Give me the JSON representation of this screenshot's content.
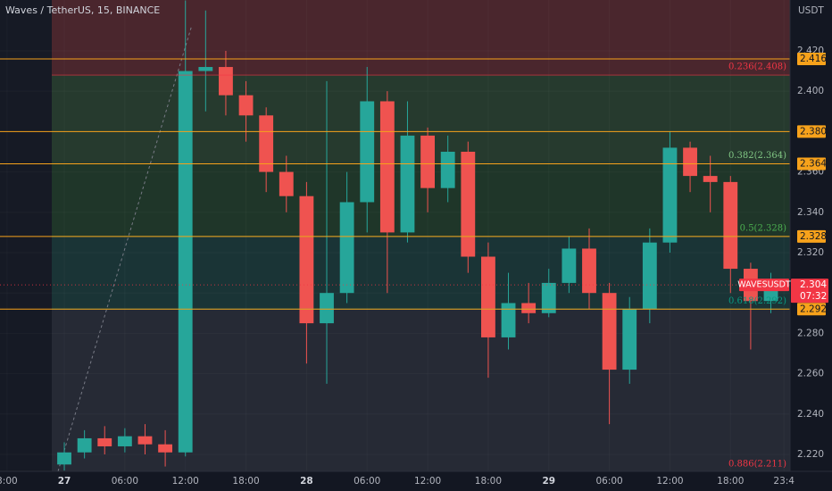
{
  "chart_data": {
    "type": "candlestick",
    "title": "Waves / TetherUS, 15, BINANCE",
    "y_unit": "USDT",
    "up_color": "#26a69a",
    "down_color": "#ef5350",
    "x": [
      0,
      2,
      4,
      6,
      8,
      10,
      12,
      14,
      16,
      18,
      20,
      22,
      24,
      26,
      28,
      30,
      32,
      34,
      36,
      38,
      40,
      42,
      44,
      46,
      48,
      50,
      52,
      54,
      56,
      58,
      60,
      62,
      64,
      66,
      68,
      70
    ],
    "open": [
      2.215,
      2.221,
      2.228,
      2.224,
      2.229,
      2.225,
      2.221,
      2.41,
      2.412,
      2.398,
      2.388,
      2.36,
      2.348,
      2.285,
      2.3,
      2.345,
      2.395,
      2.33,
      2.378,
      2.352,
      2.37,
      2.318,
      2.278,
      2.295,
      2.29,
      2.305,
      2.322,
      2.3,
      2.262,
      2.292,
      2.325,
      2.372,
      2.358,
      2.355,
      2.312,
      2.296
    ],
    "high": [
      2.226,
      2.232,
      2.234,
      2.233,
      2.235,
      2.232,
      2.445,
      2.44,
      2.42,
      2.405,
      2.392,
      2.368,
      2.355,
      2.405,
      2.36,
      2.412,
      2.4,
      2.395,
      2.382,
      2.378,
      2.375,
      2.325,
      2.31,
      2.305,
      2.312,
      2.328,
      2.332,
      2.305,
      2.298,
      2.332,
      2.38,
      2.375,
      2.368,
      2.358,
      2.315,
      2.31
    ],
    "low": [
      2.212,
      2.218,
      2.22,
      2.221,
      2.22,
      2.214,
      2.219,
      2.39,
      2.388,
      2.375,
      2.35,
      2.34,
      2.265,
      2.255,
      2.295,
      2.33,
      2.3,
      2.325,
      2.34,
      2.345,
      2.31,
      2.258,
      2.272,
      2.285,
      2.288,
      2.3,
      2.292,
      2.235,
      2.255,
      2.285,
      2.32,
      2.35,
      2.34,
      2.3,
      2.272,
      2.29
    ],
    "close": [
      2.221,
      2.228,
      2.224,
      2.229,
      2.225,
      2.221,
      2.41,
      2.412,
      2.398,
      2.388,
      2.36,
      2.348,
      2.285,
      2.3,
      2.345,
      2.395,
      2.33,
      2.378,
      2.352,
      2.37,
      2.318,
      2.278,
      2.295,
      2.29,
      2.305,
      2.322,
      2.3,
      2.262,
      2.292,
      2.325,
      2.372,
      2.358,
      2.355,
      2.312,
      2.296,
      2.304
    ],
    "xlim": [
      -6.37,
      71.9
    ],
    "xticks": [
      {
        "value": -5.67,
        "label": "3:00"
      },
      {
        "value": 0,
        "label": "27"
      },
      {
        "value": 6,
        "label": "06:00"
      },
      {
        "value": 12,
        "label": "12:00"
      },
      {
        "value": 18,
        "label": "18:00"
      },
      {
        "value": 24,
        "label": "28"
      },
      {
        "value": 30,
        "label": "06:00"
      },
      {
        "value": 36,
        "label": "12:00"
      },
      {
        "value": 42,
        "label": "18:00"
      },
      {
        "value": 48,
        "label": "29"
      },
      {
        "value": 54,
        "label": "06:00"
      },
      {
        "value": 60,
        "label": "12:00"
      },
      {
        "value": 66,
        "label": "18:00"
      },
      {
        "value": 71.3,
        "label": "23:4"
      }
    ],
    "ylim": [
      2.2116,
      2.4452
    ],
    "yticks": [
      {
        "value": 2.22,
        "label": "2.220"
      },
      {
        "value": 2.24,
        "label": "2.240"
      },
      {
        "value": 2.26,
        "label": "2.260"
      },
      {
        "value": 2.28,
        "label": "2.280"
      },
      {
        "value": 2.3,
        "label": "2.300"
      },
      {
        "value": 2.32,
        "label": "2.320"
      },
      {
        "value": 2.34,
        "label": "2.340"
      },
      {
        "value": 2.36,
        "label": "2.360"
      },
      {
        "value": 2.38,
        "label": "2.380"
      },
      {
        "value": 2.4,
        "label": "2.400"
      },
      {
        "value": 2.42,
        "label": "2.420"
      }
    ],
    "fib_levels": [
      {
        "label": "0.236(2.408)",
        "value": 2.408,
        "color": "#f23645",
        "zone_color": "#4a262d"
      },
      {
        "label": "0.382(2.364)",
        "value": 2.364,
        "color": "#81c784",
        "zone_color": "#263a2e"
      },
      {
        "label": "0.5(2.328)",
        "value": 2.328,
        "color": "#4caf50",
        "zone_color": "#1f3629"
      },
      {
        "label": "0.618(2.292)",
        "value": 2.292,
        "color": "#089981",
        "zone_color": "#1a3436"
      },
      {
        "label": "0.886(2.211)",
        "value": 2.211,
        "color": "#f23645",
        "zone_color": "#262a35"
      }
    ],
    "price_lines": [
      {
        "value": 2.416,
        "label": "2.416"
      },
      {
        "value": 2.38,
        "label": "2.380"
      },
      {
        "value": 2.364,
        "label": "2.364"
      },
      {
        "value": 2.328,
        "label": "2.328"
      },
      {
        "value": 2.292,
        "label": "2.292"
      }
    ],
    "price_line_color": "#f7a21b",
    "last_price": {
      "symbol": "WAVESUSDT",
      "value": 2.304,
      "label": "2.304",
      "countdown": "07:32",
      "color": "#f23645"
    }
  }
}
